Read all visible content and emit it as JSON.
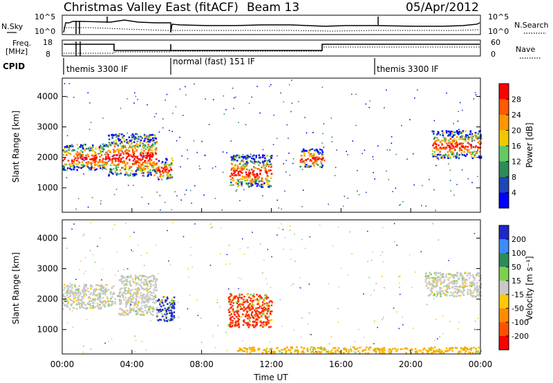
{
  "header": {
    "title": "Christmas Valley East (fitACF)",
    "beam": "Beam 13",
    "date": "05/Apr/2012"
  },
  "top_panels": {
    "nsky_label": "N.Sky",
    "nsky_ticks": [
      "10^5",
      "10^0"
    ],
    "nsearch_label": "N.Search",
    "nsearch_ticks": [
      "10^5",
      "10^0"
    ],
    "freq_label_1": "Freq.",
    "freq_label_2": "[MHz]",
    "freq_ticks": [
      "18",
      "8"
    ],
    "nave_label": "Nave",
    "nave_ticks": [
      "60",
      "0"
    ],
    "cpid_label": "CPID",
    "cpid_modes": [
      "themis 3300 IF",
      "normal (fast) 151 IF",
      "themis 3300 IF"
    ]
  },
  "chart_data": [
    {
      "type": "heatmap",
      "name": "power",
      "ylabel": "Slant Range [km]",
      "yticks": [
        1000,
        2000,
        3000,
        4000
      ],
      "ylim": [
        200,
        4600
      ],
      "xlim": [
        0,
        24
      ],
      "colorbar_label": "Power [dB]",
      "colorbar_ticks": [
        "28",
        "24",
        "20",
        "16",
        "12",
        "8",
        "4"
      ],
      "colorbar_colors": [
        "#ff0000",
        "#ff5a00",
        "#ff9600",
        "#f0c800",
        "#64c864",
        "#2e8b57",
        "#1e46b4",
        "#0000ff"
      ],
      "features": [
        {
          "t0": 0.0,
          "t1": 2.6,
          "r": [
            1600,
            2450
          ]
        },
        {
          "t0": 2.6,
          "t1": 5.4,
          "r": [
            1400,
            2800
          ]
        },
        {
          "t0": 5.4,
          "t1": 6.3,
          "r": [
            1300,
            2000
          ]
        },
        {
          "t0": 9.6,
          "t1": 12.0,
          "r": [
            1050,
            2100
          ]
        },
        {
          "t0": 13.6,
          "t1": 15.0,
          "r": [
            1700,
            2300
          ]
        },
        {
          "t0": 21.2,
          "t1": 24.0,
          "r": [
            2000,
            2900
          ]
        }
      ]
    },
    {
      "type": "heatmap",
      "name": "velocity",
      "ylabel": "Slant Range [km]",
      "yticks": [
        1000,
        2000,
        3000,
        4000
      ],
      "ylim": [
        200,
        4600
      ],
      "xlim": [
        0,
        24
      ],
      "xticks": [
        "00:00",
        "04:00",
        "08:00",
        "12:00",
        "16:00",
        "20:00",
        "00:00"
      ],
      "xlabel": "Time UT",
      "colorbar_label": "Velocity [m s⁻¹]",
      "colorbar_ticks": [
        "200",
        "100",
        "50",
        "15",
        "-15",
        "-50",
        "-100",
        "-200"
      ],
      "colorbar_colors": [
        "#1e28c8",
        "#3c8cff",
        "#2e8b57",
        "#7cd050",
        "#c8c8c8",
        "#ffc800",
        "#ff8c00",
        "#ff5000",
        "#ff0000"
      ],
      "features": [
        {
          "t0": 0.0,
          "t1": 3.0,
          "r": [
            1700,
            2500
          ],
          "v": "grey"
        },
        {
          "t0": 3.2,
          "t1": 5.4,
          "r": [
            1500,
            2800
          ],
          "v": "grey"
        },
        {
          "t0": 5.4,
          "t1": 6.4,
          "r": [
            1300,
            2100
          ],
          "v": "blue"
        },
        {
          "t0": 9.5,
          "t1": 12.0,
          "r": [
            1100,
            2200
          ],
          "v": "red"
        },
        {
          "t0": 20.8,
          "t1": 24.0,
          "r": [
            2100,
            2900
          ],
          "v": "grey"
        },
        {
          "t0": 10.0,
          "t1": 24.0,
          "r": [
            250,
            450
          ],
          "v": "orange"
        }
      ]
    }
  ]
}
